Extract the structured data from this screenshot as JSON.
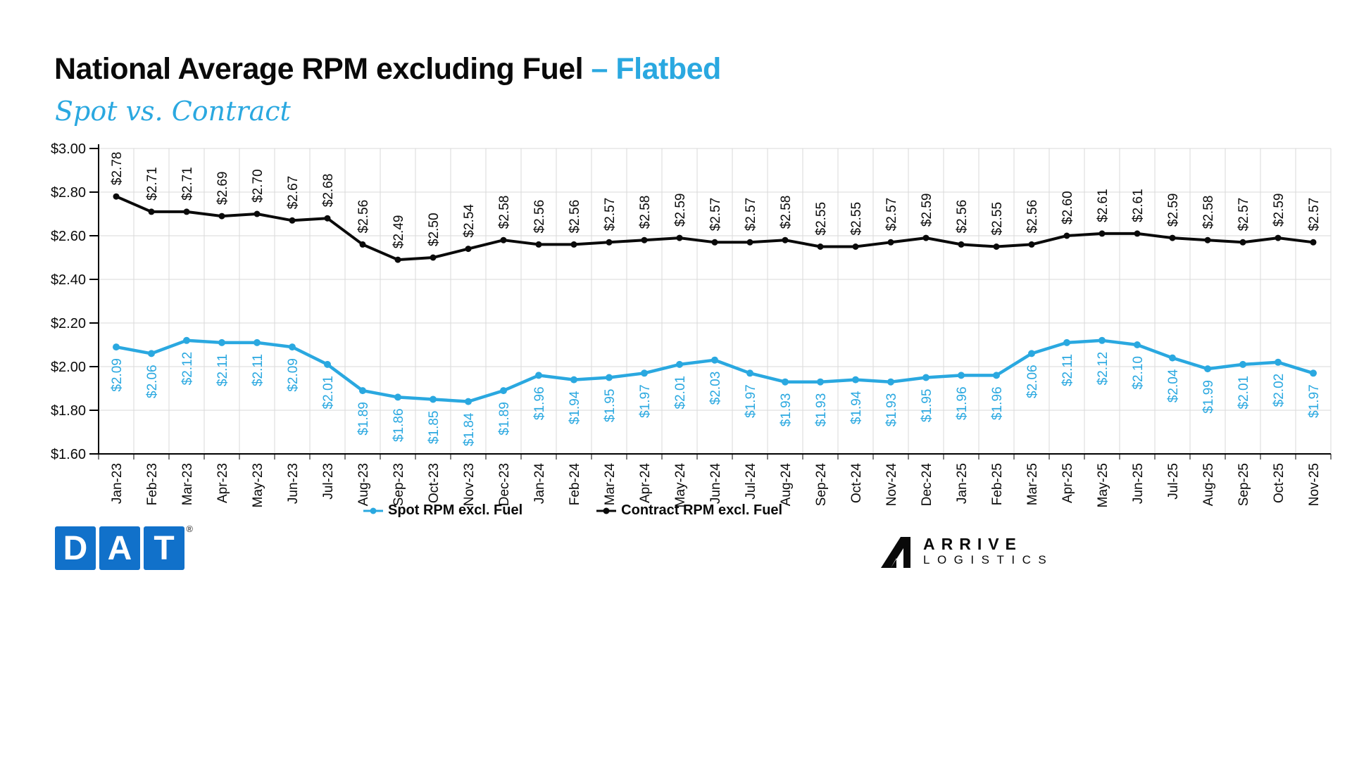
{
  "header": {
    "title_main": "National Average RPM excluding Fuel",
    "title_accent": "– Flatbed",
    "subtitle": "Spot vs. Contract"
  },
  "chart_data": {
    "type": "line",
    "title": "National Average RPM excluding Fuel – Flatbed",
    "subtitle": "Spot vs. Contract",
    "categories": [
      "Jan-23",
      "Feb-23",
      "Mar-23",
      "Apr-23",
      "May-23",
      "Jun-23",
      "Jul-23",
      "Aug-23",
      "Sep-23",
      "Oct-23",
      "Nov-23",
      "Dec-23",
      "Jan-24",
      "Feb-24",
      "Mar-24",
      "Apr-24",
      "May-24",
      "Jun-24",
      "Jul-24",
      "Aug-24",
      "Sep-24",
      "Oct-24",
      "Nov-24",
      "Dec-24",
      "Jan-25",
      "Feb-25",
      "Mar-25",
      "Apr-25",
      "May-25",
      "Jun-25",
      "Jul-25",
      "Aug-25",
      "Sep-25",
      "Oct-25",
      "Nov-25"
    ],
    "series": [
      {
        "name": "Spot RPM excl. Fuel",
        "color": "#2aa8e0",
        "label_side": "below",
        "values": [
          2.09,
          2.06,
          2.12,
          2.11,
          2.11,
          2.09,
          2.01,
          1.89,
          1.86,
          1.85,
          1.84,
          1.89,
          1.96,
          1.94,
          1.95,
          1.97,
          2.01,
          2.03,
          1.97,
          1.93,
          1.93,
          1.94,
          1.93,
          1.95,
          1.96,
          1.96,
          2.06,
          2.11,
          2.12,
          2.1,
          2.04,
          1.99,
          2.01,
          2.02,
          1.97
        ]
      },
      {
        "name": "Contract RPM excl. Fuel",
        "color": "#0a0a0a",
        "label_side": "above",
        "values": [
          2.78,
          2.71,
          2.71,
          2.69,
          2.7,
          2.67,
          2.68,
          2.56,
          2.49,
          2.5,
          2.54,
          2.58,
          2.56,
          2.56,
          2.57,
          2.58,
          2.59,
          2.57,
          2.57,
          2.58,
          2.55,
          2.55,
          2.57,
          2.59,
          2.56,
          2.55,
          2.56,
          2.6,
          2.61,
          2.61,
          2.59,
          2.58,
          2.57,
          2.59,
          2.57
        ]
      }
    ],
    "value_prefix": "$",
    "ylim": [
      1.6,
      3.0
    ],
    "y_ticks": [
      "$1.60",
      "$1.80",
      "$2.00",
      "$2.20",
      "$2.40",
      "$2.60",
      "$2.80",
      "$3.00"
    ],
    "grid": true,
    "legend_position": "bottom",
    "grid_color": "#dadada",
    "axis_color": "#000000"
  },
  "footer": {
    "dat_letters": [
      "D",
      "A",
      "T"
    ],
    "dat_registered": "®",
    "arrive_line1": "ARRIVE",
    "arrive_line2": "LOGISTICS"
  }
}
